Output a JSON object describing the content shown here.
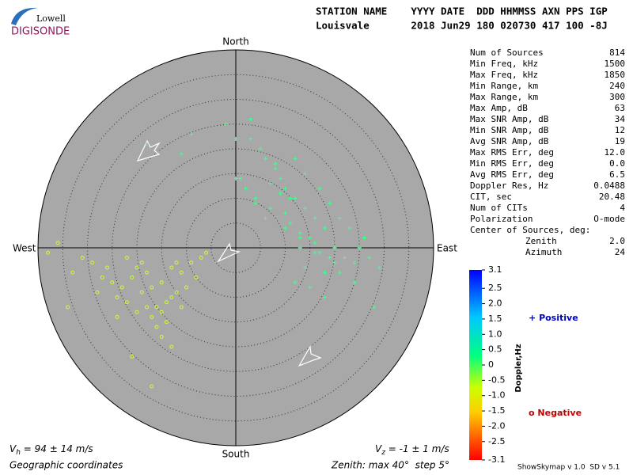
{
  "chart_data": {
    "type": "skymap",
    "logo": {
      "top": "Lowell",
      "bottom": "DIGISONDE"
    },
    "header": [
      "STATION NAME    YYYY DATE  DDD HHMMSS AXN PPS IGP",
      "Louisvale       2018 Jun29 180 020730 417 100 -8J"
    ],
    "directions": {
      "north": "North",
      "south": "South",
      "east": "East",
      "west": "West"
    },
    "rlim": [
      0,
      40
    ],
    "rticks": [
      5,
      10,
      15,
      20,
      25,
      30,
      35
    ],
    "stats": [
      {
        "label": "Num of Sources",
        "value": "814"
      },
      {
        "label": "Min Freq, kHz",
        "value": "1500"
      },
      {
        "label": "Max Freq, kHz",
        "value": "1850"
      },
      {
        "label": "Min Range, km",
        "value": "240"
      },
      {
        "label": "Max Range, km",
        "value": "300"
      },
      {
        "label": "Max Amp, dB",
        "value": "63"
      },
      {
        "label": "Max SNR Amp, dB",
        "value": "34"
      },
      {
        "label": "Min SNR Amp, dB",
        "value": "12"
      },
      {
        "label": "Avg SNR Amp, dB",
        "value": "19"
      },
      {
        "label": "Max RMS Err, deg",
        "value": "12.0"
      },
      {
        "label": "Min RMS Err, deg",
        "value": "0.0"
      },
      {
        "label": "Avg RMS Err, deg",
        "value": "6.5"
      },
      {
        "label": "Doppler Res, Hz",
        "value": "0.0488"
      },
      {
        "label": "CIT, sec",
        "value": "20.48"
      },
      {
        "label": "Num of CITs",
        "value": "4"
      },
      {
        "label": "Polarization",
        "value": "O-mode"
      }
    ],
    "center_title": "Center of Sources, deg:",
    "center": [
      {
        "label": "Zenith",
        "value": "2.0"
      },
      {
        "label": "Azimuth",
        "value": "24"
      }
    ],
    "colorbar": {
      "label": "Doppler,Hz",
      "ylim": [
        -3.1,
        3.1
      ],
      "yticks": [
        3.1,
        2.5,
        {
          "value": 2,
          "label": "2.0"
        },
        1.5,
        {
          "value": 1,
          "label": "1.0"
        },
        0.5,
        0,
        -0.5,
        {
          "value": -1,
          "label": "-1.0"
        },
        -1.5,
        {
          "value": -2,
          "label": "-2.0"
        },
        -2.5,
        -3.1
      ]
    },
    "series": [
      {
        "name": "Positive",
        "marker": "+",
        "color": "#40ff90",
        "legend_color": "#0000c0",
        "x": [
          12,
          14,
          10,
          16,
          18,
          15,
          11,
          13,
          9,
          17,
          20,
          19,
          8,
          6,
          5,
          3,
          0,
          0,
          2,
          4,
          7,
          10,
          13,
          16,
          22,
          24,
          21,
          25,
          26,
          23,
          12,
          14,
          15,
          18,
          20,
          11,
          9,
          7,
          8,
          14,
          17,
          19,
          21,
          16,
          13,
          10,
          6,
          4,
          1,
          27,
          29,
          18,
          12,
          24,
          3,
          -2,
          -9,
          -11,
          -18,
          28
        ],
        "y": [
          10,
          8,
          12,
          6,
          4,
          2,
          5,
          0,
          14,
          -1,
          0,
          -2,
          16,
          18,
          20,
          22,
          22,
          14,
          12,
          9,
          8,
          7,
          3,
          1,
          -2,
          -3,
          -5,
          0,
          2,
          4,
          -7,
          -4,
          -8,
          -5,
          -3,
          10,
          11,
          13,
          17,
          15,
          12,
          9,
          6,
          -1,
          2,
          4,
          6,
          10,
          14,
          -2,
          -4,
          -10,
          18,
          -7,
          26,
          25,
          23,
          19,
          21,
          -12
        ]
      },
      {
        "name": "Negative",
        "marker": "o",
        "color": "#ccff33",
        "legend_color": "#c00000",
        "x": [
          -17,
          -19,
          -15,
          -13,
          -21,
          -23,
          -16,
          -14,
          -12,
          -18,
          -20,
          -22,
          -25,
          -27,
          -11,
          -10,
          -9,
          -15,
          -17,
          -13,
          -19,
          -24,
          -26,
          -29,
          -31,
          -33,
          -8,
          -7,
          -14,
          -16,
          -20,
          -18,
          -12,
          -22,
          -28,
          -34,
          -36,
          -38,
          -24,
          -15,
          -11,
          -6,
          -21,
          -17,
          -13
        ],
        "y": [
          -8,
          -9,
          -7,
          -10,
          -6,
          -8,
          -12,
          -11,
          -9,
          -5,
          -4,
          -11,
          -7,
          -6,
          -5,
          -8,
          -3,
          -13,
          -14,
          -4,
          -3,
          -10,
          -4,
          -3,
          -2,
          -5,
          -6,
          -2,
          -15,
          -16,
          -13,
          -12,
          -3,
          -2,
          -9,
          -12,
          1,
          -1,
          -14,
          -18,
          -12,
          -1,
          -22,
          -28,
          -20
        ]
      }
    ],
    "vh": {
      "symbol": "V",
      "sub": "h",
      "text": " = 94 ± 14 m/s"
    },
    "vz": {
      "symbol": "V",
      "sub": "z",
      "text": " = -1 ± 1 m/s"
    },
    "footer": {
      "coords": "Geographic coordinates",
      "zenith": "Zenith: max 40°  step 5°",
      "version": "ShowSkymap v 1.0  SD v 5.1"
    }
  }
}
